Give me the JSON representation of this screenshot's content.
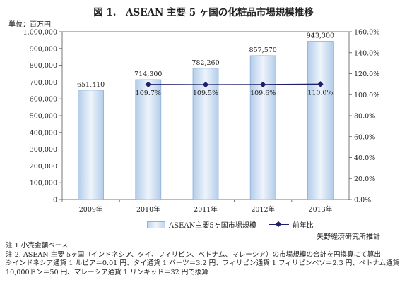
{
  "chart_data": {
    "type": "bar",
    "title": "図 1.　ASEAN 主要 5 ヶ国の化粧品市場規模推移",
    "y_unit_label": "単位：百万円",
    "categories": [
      "2009年",
      "2010年",
      "2011年",
      "2012年",
      "2013年"
    ],
    "series": [
      {
        "name": "ASEAN主要5ヶ国市場規模",
        "type": "bar",
        "axis": "left",
        "values": [
          651410,
          714300,
          782260,
          857570,
          943300
        ],
        "labels": [
          "651,410",
          "714,300",
          "782,260",
          "857,570",
          "943,300"
        ],
        "color": "#bfd5ee"
      },
      {
        "name": "前年比",
        "type": "line",
        "axis": "right",
        "values": [
          null,
          109.7,
          109.5,
          109.6,
          110.0
        ],
        "labels": [
          "",
          "109.7%",
          "109.5%",
          "109.6%",
          "110.0%"
        ],
        "color": "#1f1f6b"
      }
    ],
    "y_left": {
      "min": 0,
      "max": 1000000,
      "ticks": [
        "0",
        "100,000",
        "200,000",
        "300,000",
        "400,000",
        "500,000",
        "600,000",
        "700,000",
        "800,000",
        "900,000",
        "1,000,000"
      ]
    },
    "y_right": {
      "min": 0,
      "max": 160,
      "ticks": [
        "0.0%",
        "20.0%",
        "40.0%",
        "60.0%",
        "80.0%",
        "100.0%",
        "120.0%",
        "140.0%",
        "160.0%"
      ]
    },
    "grid": false,
    "legend_position": "bottom"
  },
  "source": "矢野経済研究所推計",
  "notes": [
    "注 1.小売金額ベース",
    "注 2. ASEAN 主要 5ヶ国（インドネシア、タイ、フィリピン、ベトナム、マレーシア）の市場規模の合計を円換算にて算出",
    "※インドネシア通貨 1 ルピア＝0.01 円、タイ通貨 1 バーツ＝3.2 円、フィリピン通貨 1 フィリピンペソ＝2.3 円、ベトナム通貨",
    "10,000ドン＝50 円、マレーシア通貨 1 リンキッド＝32 円で換算"
  ]
}
